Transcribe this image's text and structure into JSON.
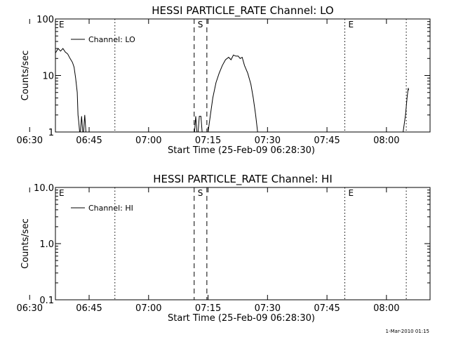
{
  "footer": {
    "timestamp": "1-Mar-2010 01:15"
  },
  "chart_data": [
    {
      "type": "line",
      "title": "HESSI PARTICLE_RATE Channel: LO",
      "xlabel": "Start Time (25-Feb-09 06:28:30)",
      "ylabel": "Counts/sec",
      "y_scale": "log",
      "ylim": [
        1,
        100
      ],
      "y_ticks": [
        1,
        10,
        100
      ],
      "y_tick_labels": [
        "1",
        "10",
        "100"
      ],
      "xlim_minutes": [
        6.5,
        101
      ],
      "x_tick_minutes": [
        0,
        15,
        30,
        45,
        60,
        75,
        90
      ],
      "x_tick_labels": [
        "06:30",
        "06:45",
        "07:00",
        "07:15",
        "07:30",
        "07:45",
        "08:00"
      ],
      "legend": {
        "placement": "top-left",
        "label": "Channel: LO"
      },
      "markers": [
        {
          "label": "E",
          "time_min": 6.5,
          "style": "none"
        },
        {
          "label": "",
          "time_min": 21.5,
          "style": "dotted"
        },
        {
          "label": "S",
          "time_min": 41.5,
          "style": "dashed"
        },
        {
          "label": "",
          "time_min": 44.7,
          "style": "dashed"
        },
        {
          "label": "E",
          "time_min": 79.5,
          "style": "dotted"
        },
        {
          "label": "",
          "time_min": 95,
          "style": "dotted"
        }
      ],
      "series": [
        {
          "name": "Channel: LO",
          "segments": [
            [
              [
                6.5,
                25
              ],
              [
                7.2,
                30
              ],
              [
                7.8,
                27
              ],
              [
                8.4,
                30
              ],
              [
                9.0,
                26
              ],
              [
                9.6,
                24
              ],
              [
                10.2,
                20
              ],
              [
                10.8,
                17
              ],
              [
                11.2,
                14
              ],
              [
                11.6,
                9
              ],
              [
                12.0,
                5
              ],
              [
                12.2,
                2
              ],
              [
                12.4,
                1.5
              ],
              [
                12.6,
                1
              ]
            ],
            [
              [
                12.8,
                1
              ],
              [
                13.1,
                1.9
              ],
              [
                13.4,
                1
              ]
            ],
            [
              [
                13.6,
                1
              ],
              [
                13.9,
                2
              ],
              [
                14.2,
                1
              ]
            ],
            [
              [
                41.6,
                1
              ],
              [
                41.9,
                1.9
              ],
              [
                42.2,
                1
              ]
            ],
            [
              [
                42.5,
                1
              ],
              [
                42.8,
                1.9
              ],
              [
                43.2,
                1.9
              ],
              [
                43.5,
                1
              ]
            ],
            [
              [
                45.0,
                1
              ],
              [
                45.6,
                2
              ],
              [
                46.2,
                4
              ],
              [
                47.0,
                7.5
              ],
              [
                47.8,
                11
              ],
              [
                48.6,
                15
              ],
              [
                49.4,
                19
              ],
              [
                50.2,
                21
              ],
              [
                50.8,
                19
              ],
              [
                51.4,
                23
              ],
              [
                52.0,
                22
              ],
              [
                52.6,
                22
              ],
              [
                53.1,
                20
              ],
              [
                53.6,
                21
              ],
              [
                54.2,
                15
              ],
              [
                55.0,
                11
              ],
              [
                55.8,
                7
              ],
              [
                56.4,
                4
              ],
              [
                57.0,
                2
              ],
              [
                57.5,
                1
              ]
            ],
            [
              [
                94.2,
                1
              ],
              [
                94.8,
                2
              ],
              [
                95.2,
                4
              ],
              [
                95.5,
                6
              ],
              [
                95.6,
                5.5
              ]
            ]
          ]
        }
      ]
    },
    {
      "type": "line",
      "title": "HESSI PARTICLE_RATE Channel: HI",
      "xlabel": "Start Time (25-Feb-09 06:28:30)",
      "ylabel": "Counts/sec",
      "y_scale": "log",
      "ylim": [
        0.1,
        10
      ],
      "y_ticks": [
        0.1,
        1,
        10
      ],
      "y_tick_labels": [
        "0.1",
        "1.0",
        "10.0"
      ],
      "xlim_minutes": [
        6.5,
        101
      ],
      "x_tick_minutes": [
        0,
        15,
        30,
        45,
        60,
        75,
        90
      ],
      "x_tick_labels": [
        "06:30",
        "06:45",
        "07:00",
        "07:15",
        "07:30",
        "07:45",
        "08:00"
      ],
      "legend": {
        "placement": "top-left",
        "label": "Channel: HI"
      },
      "markers": [
        {
          "label": "E",
          "time_min": 6.5,
          "style": "none"
        },
        {
          "label": "",
          "time_min": 21.5,
          "style": "dotted"
        },
        {
          "label": "S",
          "time_min": 41.5,
          "style": "dashed"
        },
        {
          "label": "",
          "time_min": 44.7,
          "style": "dashed"
        },
        {
          "label": "E",
          "time_min": 79.5,
          "style": "dotted"
        },
        {
          "label": "",
          "time_min": 95,
          "style": "dotted"
        }
      ],
      "series": [
        {
          "name": "Channel: HI",
          "segments": []
        }
      ]
    }
  ]
}
